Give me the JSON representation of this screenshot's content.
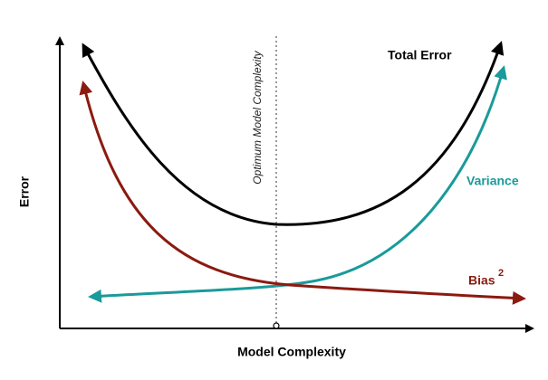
{
  "labels": {
    "total_error": "Total Error",
    "variance": "Variance",
    "bias": "Bias",
    "bias_superscript": "2",
    "optimum": "Optimum Model Complexity"
  },
  "axes": {
    "y_label": "Error",
    "x_label": "Model Complexity"
  }
}
